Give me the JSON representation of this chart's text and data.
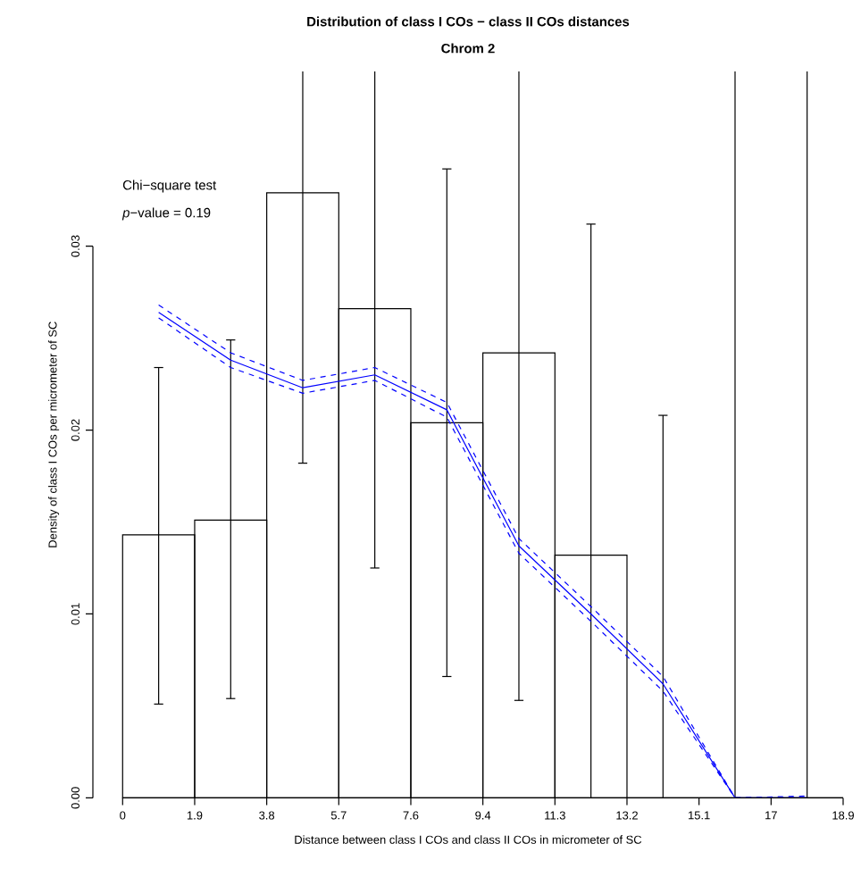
{
  "chart_data": {
    "type": "histogram",
    "title": "Distribution of class I COs − class II COs distances",
    "subtitle": "Chrom  2",
    "xlabel": "Distance between class I COs and class II COs in micrometer of SC",
    "ylabel": "Density of class I COs per micrometer of SC",
    "annotations": [
      "Chi−square test",
      "*p*−value =  0.19"
    ],
    "bins": [
      0,
      1.89,
      3.78,
      5.67,
      7.56,
      9.45,
      11.34,
      13.23,
      15.12,
      17.01,
      18.9
    ],
    "values": [
      0.0143,
      0.0151,
      0.0329,
      0.0266,
      0.0204,
      0.0242,
      0.0132,
      0,
      0,
      0
    ],
    "errors": [
      [
        0.0051,
        0.0234
      ],
      [
        0.0054,
        0.0249
      ],
      [
        0.0182,
        0.0395
      ],
      [
        0.0125,
        0.0395
      ],
      [
        0.0066,
        0.0342
      ],
      [
        0.0053,
        0.0395
      ],
      [
        0,
        0.0312
      ],
      [
        0,
        0.0208
      ],
      [
        0,
        0.0395
      ],
      [
        0,
        0.0395
      ]
    ],
    "color": "#000000",
    "series": [
      {
        "type": "line",
        "color": "#0000ff",
        "line_style": "solid",
        "x": [
          0.945,
          2.835,
          4.725,
          6.615,
          8.505,
          10.395,
          12.285,
          14.175,
          16.065,
          17.955
        ],
        "values": [
          0.0264,
          0.0238,
          0.0223,
          0.023,
          0.0211,
          0.0137,
          0.01,
          0.0062,
          0,
          0
        ]
      },
      {
        "type": "line",
        "color": "#0000ff",
        "line_style": "dashed",
        "x": [
          0.945,
          2.835,
          4.725,
          6.615,
          8.505,
          10.395,
          12.285,
          14.175,
          16.065,
          17.955
        ],
        "values": [
          0.0261,
          0.0234,
          0.022,
          0.0227,
          0.0207,
          0.0133,
          0.0096,
          0.0058,
          0,
          0
        ]
      },
      {
        "type": "line",
        "color": "#0000ff",
        "line_style": "dashed",
        "x": [
          0.945,
          2.835,
          4.725,
          6.615,
          8.505,
          10.395,
          12.285,
          14.175,
          16.065,
          17.955
        ],
        "values": [
          0.0268,
          0.0242,
          0.0227,
          0.0234,
          0.0215,
          0.0141,
          0.0104,
          0.0066,
          0,
          0.0001
        ]
      }
    ],
    "xlim": [
      -0.78,
      18.9
    ],
    "ylim": [
      0,
      0.0395
    ],
    "xticks": [
      0,
      {
        "value": 1.89,
        "label": "1.9"
      },
      {
        "value": 3.78,
        "label": "3.8"
      },
      {
        "value": 5.67,
        "label": "5.7"
      },
      {
        "value": 7.56,
        "label": "7.6"
      },
      {
        "value": 9.45,
        "label": "9.4"
      },
      {
        "value": 11.34,
        "label": "11.3"
      },
      {
        "value": 13.23,
        "label": "13.2"
      },
      {
        "value": 15.12,
        "label": "15.1"
      },
      {
        "value": 17.01,
        "label": "17"
      },
      18.9
    ],
    "yticks": [
      {
        "value": 0,
        "label": "0.00"
      },
      0.01,
      0.02,
      0.03
    ]
  }
}
